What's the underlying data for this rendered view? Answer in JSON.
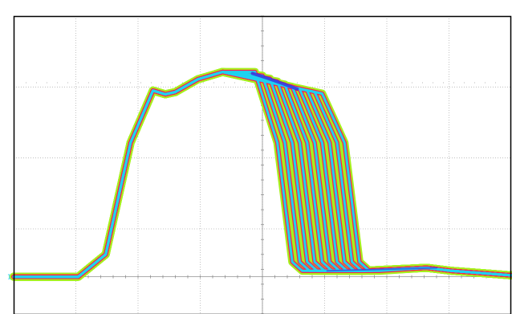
{
  "chart_data": {
    "type": "line",
    "title": "",
    "xlabel": "",
    "ylabel": "",
    "grid": true,
    "xlim": [
      0,
      10
    ],
    "ylim": [
      -0.5,
      3.5
    ],
    "channel_marker": "1",
    "colors": {
      "background": "#ffffff",
      "frame": "#000000",
      "grid": "#b4b4b4",
      "envelope_outer": "#a6f01e",
      "envelope_mid": "#ff1e4b",
      "envelope_core": "#1ed2f0",
      "density_peak": "#3c28dc"
    },
    "series": [
      {
        "fall_x": 4.85,
        "values": [
          [
            0,
            0
          ],
          [
            1.3,
            0
          ],
          [
            1.85,
            0.3
          ],
          [
            2.35,
            1.8
          ],
          [
            2.8,
            2.5
          ],
          [
            3.05,
            2.45
          ],
          [
            3.25,
            2.48
          ],
          [
            3.7,
            2.65
          ],
          [
            4.2,
            2.75
          ],
          [
            4.85,
            2.75
          ],
          [
            5.3,
            1.8
          ],
          [
            5.6,
            0.2
          ],
          [
            5.8,
            0.08
          ],
          [
            7.0,
            0.08
          ],
          [
            8.3,
            0.12
          ],
          [
            8.8,
            0.08
          ],
          [
            10,
            0.02
          ]
        ]
      },
      {
        "fall_x": 5.0,
        "values": [
          [
            0,
            0
          ],
          [
            1.3,
            0
          ],
          [
            1.85,
            0.3
          ],
          [
            2.35,
            1.8
          ],
          [
            2.8,
            2.5
          ],
          [
            3.05,
            2.45
          ],
          [
            3.25,
            2.48
          ],
          [
            3.7,
            2.65
          ],
          [
            4.2,
            2.75
          ],
          [
            5.0,
            2.7
          ],
          [
            5.45,
            1.8
          ],
          [
            5.75,
            0.2
          ],
          [
            5.95,
            0.08
          ],
          [
            7.0,
            0.08
          ],
          [
            8.3,
            0.12
          ],
          [
            8.8,
            0.08
          ],
          [
            10,
            0.02
          ]
        ]
      },
      {
        "fall_x": 5.15,
        "values": [
          [
            0,
            0
          ],
          [
            1.3,
            0
          ],
          [
            1.85,
            0.3
          ],
          [
            2.35,
            1.8
          ],
          [
            2.8,
            2.5
          ],
          [
            3.05,
            2.45
          ],
          [
            3.25,
            2.48
          ],
          [
            3.7,
            2.65
          ],
          [
            4.2,
            2.75
          ],
          [
            5.15,
            2.66
          ],
          [
            5.6,
            1.8
          ],
          [
            5.9,
            0.2
          ],
          [
            6.1,
            0.08
          ],
          [
            7.0,
            0.08
          ],
          [
            8.3,
            0.12
          ],
          [
            8.8,
            0.08
          ],
          [
            10,
            0.02
          ]
        ]
      },
      {
        "fall_x": 5.3,
        "values": [
          [
            0,
            0
          ],
          [
            1.3,
            0
          ],
          [
            1.85,
            0.3
          ],
          [
            2.35,
            1.8
          ],
          [
            2.8,
            2.5
          ],
          [
            3.05,
            2.45
          ],
          [
            3.25,
            2.48
          ],
          [
            3.7,
            2.65
          ],
          [
            4.2,
            2.75
          ],
          [
            5.3,
            2.62
          ],
          [
            5.75,
            1.8
          ],
          [
            6.05,
            0.2
          ],
          [
            6.25,
            0.08
          ],
          [
            7.0,
            0.08
          ],
          [
            8.3,
            0.12
          ],
          [
            8.8,
            0.08
          ],
          [
            10,
            0.02
          ]
        ]
      },
      {
        "fall_x": 5.45,
        "values": [
          [
            0,
            0
          ],
          [
            1.3,
            0
          ],
          [
            1.85,
            0.3
          ],
          [
            2.35,
            1.8
          ],
          [
            2.8,
            2.5
          ],
          [
            3.05,
            2.45
          ],
          [
            3.25,
            2.48
          ],
          [
            3.7,
            2.65
          ],
          [
            4.2,
            2.75
          ],
          [
            5.45,
            2.58
          ],
          [
            5.9,
            1.8
          ],
          [
            6.2,
            0.2
          ],
          [
            6.4,
            0.08
          ],
          [
            7.0,
            0.08
          ],
          [
            8.3,
            0.12
          ],
          [
            8.8,
            0.08
          ],
          [
            10,
            0.02
          ]
        ]
      },
      {
        "fall_x": 5.6,
        "values": [
          [
            0,
            0
          ],
          [
            1.3,
            0
          ],
          [
            1.85,
            0.3
          ],
          [
            2.35,
            1.8
          ],
          [
            2.8,
            2.5
          ],
          [
            3.05,
            2.45
          ],
          [
            3.25,
            2.48
          ],
          [
            3.7,
            2.65
          ],
          [
            4.2,
            2.75
          ],
          [
            5.6,
            2.55
          ],
          [
            6.05,
            1.8
          ],
          [
            6.35,
            0.2
          ],
          [
            6.55,
            0.08
          ],
          [
            7.0,
            0.08
          ],
          [
            8.3,
            0.12
          ],
          [
            8.8,
            0.08
          ],
          [
            10,
            0.02
          ]
        ]
      },
      {
        "fall_x": 5.75,
        "values": [
          [
            0,
            0
          ],
          [
            1.3,
            0
          ],
          [
            1.85,
            0.3
          ],
          [
            2.35,
            1.8
          ],
          [
            2.8,
            2.5
          ],
          [
            3.05,
            2.45
          ],
          [
            3.25,
            2.48
          ],
          [
            3.7,
            2.65
          ],
          [
            4.2,
            2.75
          ],
          [
            5.75,
            2.52
          ],
          [
            6.2,
            1.8
          ],
          [
            6.5,
            0.2
          ],
          [
            6.7,
            0.08
          ],
          [
            7.0,
            0.08
          ],
          [
            8.3,
            0.12
          ],
          [
            8.8,
            0.08
          ],
          [
            10,
            0.02
          ]
        ]
      },
      {
        "fall_x": 5.9,
        "values": [
          [
            0,
            0
          ],
          [
            1.3,
            0
          ],
          [
            1.85,
            0.3
          ],
          [
            2.35,
            1.8
          ],
          [
            2.8,
            2.5
          ],
          [
            3.05,
            2.45
          ],
          [
            3.25,
            2.48
          ],
          [
            3.7,
            2.65
          ],
          [
            4.2,
            2.75
          ],
          [
            5.9,
            2.5
          ],
          [
            6.35,
            1.8
          ],
          [
            6.65,
            0.2
          ],
          [
            6.85,
            0.08
          ],
          [
            7.1,
            0.08
          ],
          [
            8.3,
            0.12
          ],
          [
            8.8,
            0.08
          ],
          [
            10,
            0.02
          ]
        ]
      },
      {
        "fall_x": 6.05,
        "values": [
          [
            0,
            0
          ],
          [
            1.3,
            0
          ],
          [
            1.85,
            0.3
          ],
          [
            2.35,
            1.8
          ],
          [
            2.8,
            2.5
          ],
          [
            3.05,
            2.45
          ],
          [
            3.25,
            2.48
          ],
          [
            3.7,
            2.65
          ],
          [
            4.2,
            2.75
          ],
          [
            6.05,
            2.48
          ],
          [
            6.5,
            1.8
          ],
          [
            6.8,
            0.2
          ],
          [
            7.0,
            0.08
          ],
          [
            7.2,
            0.08
          ],
          [
            8.3,
            0.12
          ],
          [
            8.8,
            0.08
          ],
          [
            10,
            0.02
          ]
        ]
      },
      {
        "fall_x": 6.2,
        "values": [
          [
            0,
            0
          ],
          [
            1.3,
            0
          ],
          [
            1.85,
            0.3
          ],
          [
            2.35,
            1.8
          ],
          [
            2.8,
            2.5
          ],
          [
            3.05,
            2.45
          ],
          [
            3.25,
            2.48
          ],
          [
            3.7,
            2.65
          ],
          [
            4.2,
            2.75
          ],
          [
            6.2,
            2.46
          ],
          [
            6.65,
            1.8
          ],
          [
            6.95,
            0.2
          ],
          [
            7.15,
            0.08
          ],
          [
            7.35,
            0.08
          ],
          [
            8.3,
            0.12
          ],
          [
            8.8,
            0.08
          ],
          [
            10,
            0.02
          ]
        ]
      }
    ]
  }
}
